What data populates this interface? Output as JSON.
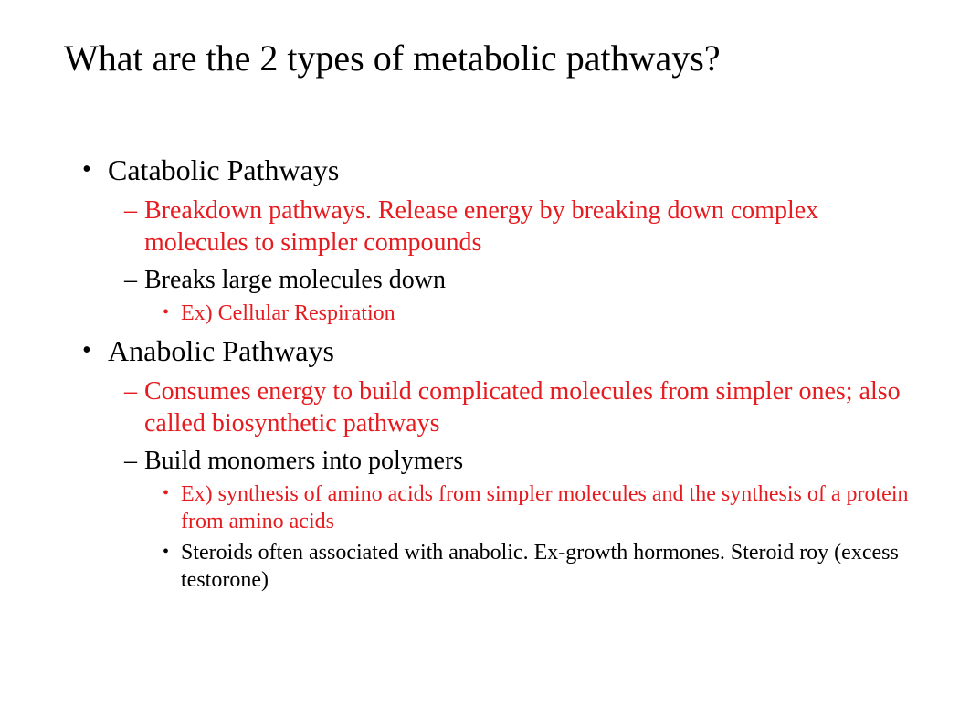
{
  "colors": {
    "background": "#ffffff",
    "text_black": "#000000",
    "text_red": "#e61b1f"
  },
  "typography": {
    "family": "Times New Roman / Liberation Serif",
    "title_size_pt": 40,
    "lvl1_size_pt": 32,
    "lvl2_size_pt": 28,
    "lvl3_size_pt": 24
  },
  "slide": {
    "title": "What are the 2 types of metabolic pathways?",
    "bullets": [
      {
        "text": "Catabolic Pathways",
        "color": "black",
        "children": [
          {
            "text": "Breakdown pathways. Release energy by breaking down complex molecules to simpler compounds",
            "color": "red"
          },
          {
            "text": "Breaks large molecules down",
            "color": "black",
            "children": [
              {
                "text": "Ex) Cellular Respiration",
                "color": "red"
              }
            ]
          }
        ]
      },
      {
        "text": "Anabolic Pathways",
        "color": "black",
        "children": [
          {
            "text": "Consumes energy to build complicated molecules from simpler ones; also called biosynthetic  pathways",
            "color": "red"
          },
          {
            "text": "Build monomers into polymers",
            "color": "black",
            "children": [
              {
                "text": "Ex) synthesis of amino acids from simpler molecules and the synthesis of a protein from amino acids",
                "color": "red"
              },
              {
                "text": "Steroids often associated with anabolic. Ex-growth hormones. Steroid roy (excess testorone)",
                "color": "black"
              }
            ]
          }
        ]
      }
    ]
  }
}
